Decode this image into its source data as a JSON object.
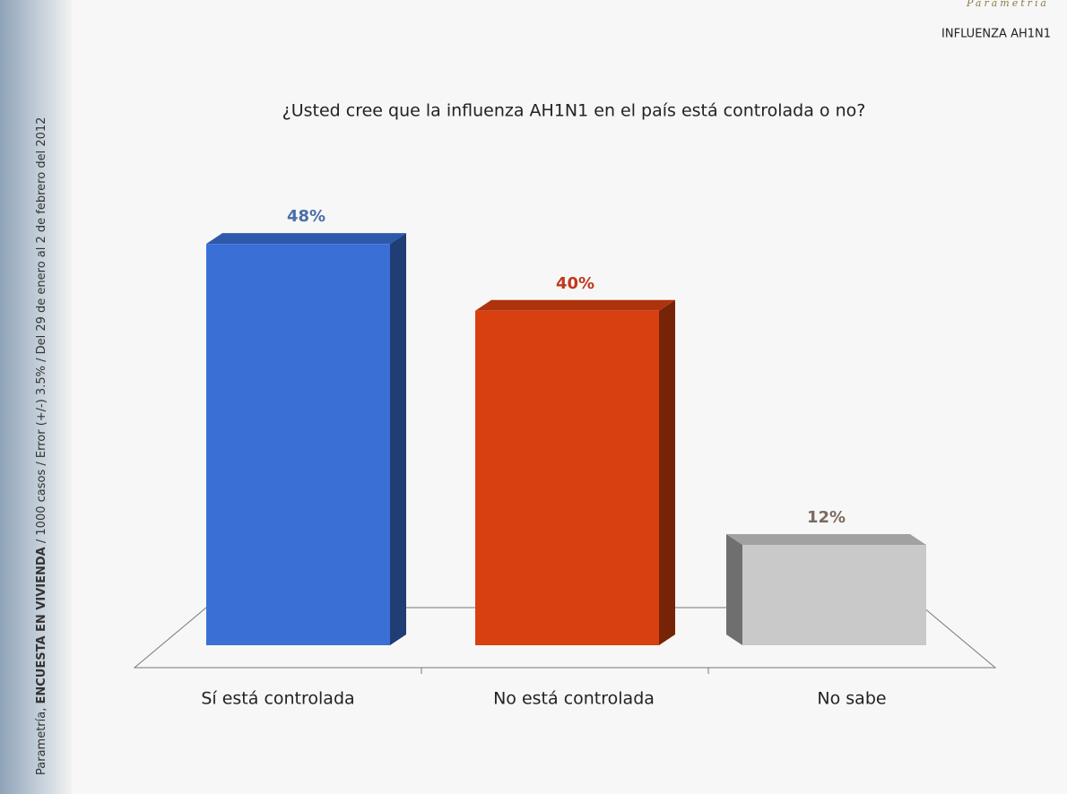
{
  "brand": "Parametría",
  "section": "INFLUENZA AH1N1",
  "source": {
    "prefix": "Parametría,",
    "survey": "ENCUESTA EN VIVIENDA",
    "details": "/ 1000 casos / Error (+/-) 3.5% / Del 29 de enero al 2 de febrero del 2012"
  },
  "chart_data": {
    "type": "bar3d",
    "title": "¿Usted cree que la influenza AH1N1 en el país está controlada o no?",
    "categories": [
      "Sí está controlada",
      "No está controlada",
      "No sabe"
    ],
    "values": [
      48,
      40,
      12
    ],
    "value_labels": [
      "48%",
      "40%",
      "12%"
    ],
    "colors": [
      "#3a6fd6",
      "#d9400f",
      "#c9c9c9"
    ],
    "label_colors": [
      "#4a6fa5",
      "#c0391b",
      "#7a6a60"
    ]
  }
}
